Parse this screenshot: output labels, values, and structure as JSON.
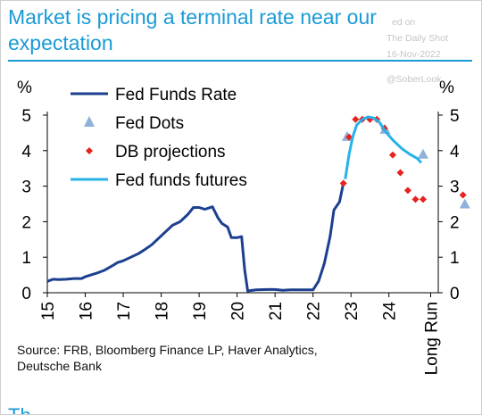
{
  "header": {
    "title": "Market is pricing a terminal rate near our expectation",
    "watermark_line1": "ed on",
    "watermark_line2": "The Daily Shot",
    "watermark_line3": "16-Nov-2022",
    "watermark_handle": "@SoberLook"
  },
  "source_text": "Source: FRB, Bloomberg Finance LP, Haver Analytics, Deutsche Bank",
  "bottom_cut_text": "Th",
  "colors": {
    "title": "#1a9ad6",
    "fed_funds_rate": "#1c3f8f",
    "fed_dots": "#8fb1da",
    "db_projections": "#e8211d",
    "futures": "#27b2e8"
  },
  "chart_data": {
    "type": "line",
    "title": "",
    "ylabel_left": "%",
    "ylabel_right": "%",
    "ylim": [
      0,
      5
    ],
    "yticks": [
      0,
      1,
      2,
      3,
      4,
      5
    ],
    "xlim": [
      2015,
      2025.3
    ],
    "xticks": [
      {
        "label": "15",
        "x": 2015
      },
      {
        "label": "16",
        "x": 2016
      },
      {
        "label": "17",
        "x": 2017
      },
      {
        "label": "18",
        "x": 2018
      },
      {
        "label": "19",
        "x": 2019
      },
      {
        "label": "20",
        "x": 2020
      },
      {
        "label": "21",
        "x": 2021
      },
      {
        "label": "22",
        "x": 2022
      },
      {
        "label": "23",
        "x": 2023
      },
      {
        "label": "24",
        "x": 2024
      },
      {
        "label": "Long Run",
        "x": 2025.1
      }
    ],
    "legend": [
      "Fed Funds Rate",
      "Fed Dots",
      "DB projections",
      "Fed funds futures"
    ],
    "legend_position": "top-left",
    "series": [
      {
        "name": "Fed Funds Rate",
        "kind": "line",
        "points": [
          [
            2015.0,
            0.32
          ],
          [
            2015.15,
            0.38
          ],
          [
            2015.3,
            0.37
          ],
          [
            2015.5,
            0.38
          ],
          [
            2015.7,
            0.4
          ],
          [
            2015.9,
            0.4
          ],
          [
            2016.0,
            0.45
          ],
          [
            2016.15,
            0.5
          ],
          [
            2016.3,
            0.55
          ],
          [
            2016.5,
            0.63
          ],
          [
            2016.7,
            0.75
          ],
          [
            2016.85,
            0.85
          ],
          [
            2017.0,
            0.9
          ],
          [
            2017.2,
            1.0
          ],
          [
            2017.4,
            1.1
          ],
          [
            2017.55,
            1.2
          ],
          [
            2017.75,
            1.35
          ],
          [
            2017.9,
            1.5
          ],
          [
            2018.1,
            1.7
          ],
          [
            2018.3,
            1.9
          ],
          [
            2018.5,
            2.0
          ],
          [
            2018.7,
            2.2
          ],
          [
            2018.85,
            2.4
          ],
          [
            2019.0,
            2.4
          ],
          [
            2019.15,
            2.35
          ],
          [
            2019.35,
            2.42
          ],
          [
            2019.5,
            2.1
          ],
          [
            2019.6,
            1.95
          ],
          [
            2019.75,
            1.85
          ],
          [
            2019.85,
            1.55
          ],
          [
            2020.0,
            1.55
          ],
          [
            2020.12,
            1.58
          ],
          [
            2020.2,
            0.65
          ],
          [
            2020.28,
            0.05
          ],
          [
            2020.5,
            0.08
          ],
          [
            2020.8,
            0.09
          ],
          [
            2021.0,
            0.09
          ],
          [
            2021.2,
            0.07
          ],
          [
            2021.4,
            0.08
          ],
          [
            2021.6,
            0.08
          ],
          [
            2021.8,
            0.08
          ],
          [
            2022.0,
            0.08
          ],
          [
            2022.15,
            0.33
          ],
          [
            2022.3,
            0.83
          ],
          [
            2022.45,
            1.58
          ],
          [
            2022.55,
            2.33
          ],
          [
            2022.7,
            2.56
          ],
          [
            2022.8,
            3.08
          ]
        ]
      },
      {
        "name": "Fed Dots",
        "kind": "triangle",
        "points": [
          [
            2022.9,
            4.4
          ],
          [
            2023.9,
            4.6
          ],
          [
            2024.9,
            3.9
          ],
          [
            2026.0,
            2.5
          ]
        ]
      },
      {
        "name": "DB projections",
        "kind": "diamond",
        "points": [
          [
            2022.8,
            3.08
          ],
          [
            2022.95,
            4.38
          ],
          [
            2023.12,
            4.88
          ],
          [
            2023.3,
            4.88
          ],
          [
            2023.5,
            4.88
          ],
          [
            2023.68,
            4.88
          ],
          [
            2023.88,
            4.63
          ],
          [
            2024.1,
            3.88
          ],
          [
            2024.3,
            3.38
          ],
          [
            2024.5,
            2.88
          ],
          [
            2024.7,
            2.63
          ],
          [
            2024.9,
            2.63
          ],
          [
            2025.95,
            2.75
          ]
        ]
      },
      {
        "name": "Fed funds futures",
        "kind": "line",
        "points": [
          [
            2022.85,
            3.2
          ],
          [
            2022.95,
            3.9
          ],
          [
            2023.05,
            4.4
          ],
          [
            2023.15,
            4.72
          ],
          [
            2023.3,
            4.88
          ],
          [
            2023.45,
            4.95
          ],
          [
            2023.6,
            4.92
          ],
          [
            2023.75,
            4.8
          ],
          [
            2023.9,
            4.55
          ],
          [
            2024.1,
            4.3
          ],
          [
            2024.35,
            4.05
          ],
          [
            2024.55,
            3.9
          ],
          [
            2024.75,
            3.78
          ],
          [
            2024.85,
            3.66
          ]
        ]
      }
    ]
  }
}
